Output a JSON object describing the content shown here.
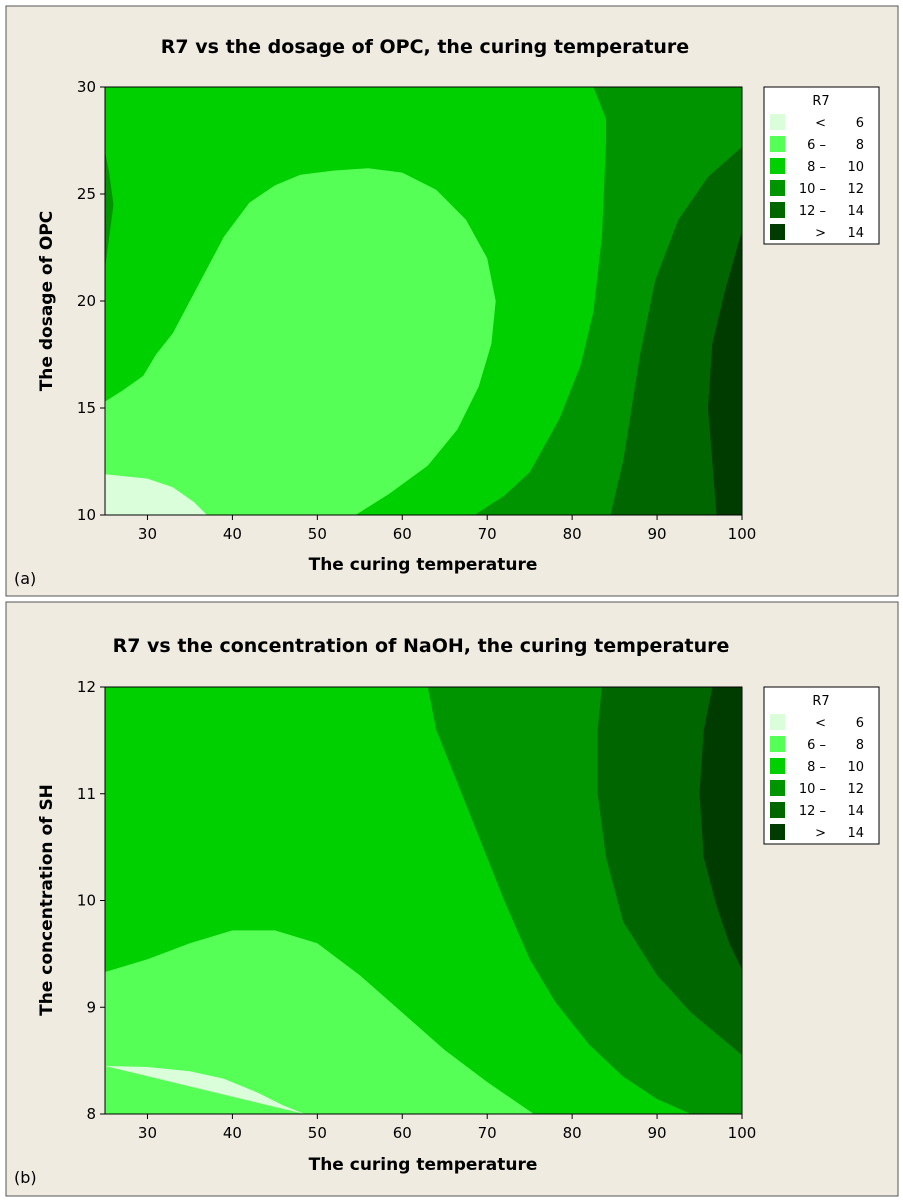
{
  "colors": {
    "panel_bg": "#f0ebe1",
    "levels": [
      "#d9fed9",
      "#55ff55",
      "#00d000",
      "#009500",
      "#006600",
      "#003c00"
    ]
  },
  "chart_data": [
    {
      "type": "contour",
      "panel_tag": "(a)",
      "title": "R7 vs the dosage of OPC, the curing temperature",
      "xlabel": "The curing temperature",
      "ylabel": "The dosage of OPC",
      "xlim": [
        25,
        100
      ],
      "ylim": [
        10,
        30
      ],
      "x_ticks": [
        "30",
        "40",
        "50",
        "60",
        "70",
        "80",
        "90",
        "100"
      ],
      "y_ticks": [
        "10",
        "15",
        "20",
        "25",
        "30"
      ],
      "legend": {
        "title": "R7",
        "placement": "right",
        "items": [
          {
            "left": "<",
            "right": "6"
          },
          {
            "left": "6 –",
            "right": "8"
          },
          {
            "left": "8 –",
            "right": "10"
          },
          {
            "left": "10 –",
            "right": "12"
          },
          {
            "left": "12 –",
            "right": "14"
          },
          {
            "left": ">",
            "right": "14"
          }
        ]
      },
      "regions": [
        {
          "level": 2,
          "points": [
            [
              25,
              10
            ],
            [
              100,
              10
            ],
            [
              100,
              30
            ],
            [
              25,
              30
            ]
          ]
        },
        {
          "level": 1,
          "points": [
            [
              25,
              15.3
            ],
            [
              27,
              15.8
            ],
            [
              29.5,
              16.5
            ],
            [
              31,
              17.5
            ],
            [
              33,
              18.5
            ],
            [
              35,
              20
            ],
            [
              37,
              21.5
            ],
            [
              39,
              23
            ],
            [
              42,
              24.6
            ],
            [
              45,
              25.4
            ],
            [
              48,
              25.9
            ],
            [
              52,
              26.1
            ],
            [
              56,
              26.2
            ],
            [
              60,
              26
            ],
            [
              64,
              25.2
            ],
            [
              67.5,
              23.8
            ],
            [
              70,
              22
            ],
            [
              71,
              20
            ],
            [
              70.5,
              18
            ],
            [
              69,
              16
            ],
            [
              66.5,
              14
            ],
            [
              63,
              12.3
            ],
            [
              58.5,
              11
            ],
            [
              54.5,
              10
            ],
            [
              25,
              10
            ]
          ]
        },
        {
          "level": 0,
          "points": [
            [
              25,
              10
            ],
            [
              25,
              11.9
            ],
            [
              30,
              11.7
            ],
            [
              33,
              11.3
            ],
            [
              35.5,
              10.6
            ],
            [
              37,
              10
            ]
          ]
        },
        {
          "level": 3,
          "points": [
            [
              100,
              30
            ],
            [
              82.5,
              30
            ],
            [
              84,
              28.5
            ],
            [
              84,
              27.5
            ],
            [
              83.5,
              23
            ],
            [
              82.5,
              19.5
            ],
            [
              81,
              17
            ],
            [
              78.5,
              14.5
            ],
            [
              75,
              12
            ],
            [
              72,
              10.9
            ],
            [
              68.5,
              10
            ],
            [
              100,
              10
            ]
          ]
        },
        {
          "level": 4,
          "points": [
            [
              100,
              27.2
            ],
            [
              96,
              25.8
            ],
            [
              92.5,
              23.8
            ],
            [
              89.8,
              21
            ],
            [
              88,
              17.5
            ],
            [
              87,
              15
            ],
            [
              86,
              12.5
            ],
            [
              84.5,
              10
            ],
            [
              100,
              10
            ]
          ]
        },
        {
          "level": 5,
          "points": [
            [
              100,
              23.3
            ],
            [
              98,
              20.5
            ],
            [
              96.5,
              18
            ],
            [
              96,
              15
            ],
            [
              96.5,
              12.5
            ],
            [
              97,
              10
            ],
            [
              100,
              10
            ]
          ]
        },
        {
          "level": 3,
          "points": [
            [
              25,
              21.5
            ],
            [
              25.5,
              23
            ],
            [
              26,
              24.5
            ],
            [
              25.5,
              26
            ],
            [
              25,
              27
            ]
          ]
        }
      ]
    },
    {
      "type": "contour",
      "panel_tag": "(b)",
      "title": "R7 vs the concentration of NaOH, the curing temperature",
      "xlabel": "The curing temperature",
      "ylabel": "The concentration of SH",
      "xlim": [
        25,
        100
      ],
      "ylim": [
        8,
        12
      ],
      "x_ticks": [
        "30",
        "40",
        "50",
        "60",
        "70",
        "80",
        "90",
        "100"
      ],
      "y_ticks": [
        "8",
        "9",
        "10",
        "11",
        "12"
      ],
      "legend": {
        "title": "R7",
        "placement": "right",
        "items": [
          {
            "left": "<",
            "right": "6"
          },
          {
            "left": "6 –",
            "right": "8"
          },
          {
            "left": "8 –",
            "right": "10"
          },
          {
            "left": "10 –",
            "right": "12"
          },
          {
            "left": "12 –",
            "right": "14"
          },
          {
            "left": ">",
            "right": "14"
          }
        ]
      },
      "regions": [
        {
          "level": 2,
          "points": [
            [
              25,
              8
            ],
            [
              100,
              8
            ],
            [
              100,
              12
            ],
            [
              25,
              12
            ]
          ]
        },
        {
          "level": 1,
          "points": [
            [
              25,
              9.33
            ],
            [
              30,
              9.45
            ],
            [
              35,
              9.6
            ],
            [
              40,
              9.72
            ],
            [
              45,
              9.72
            ],
            [
              50,
              9.6
            ],
            [
              55,
              9.3
            ],
            [
              60,
              8.95
            ],
            [
              65,
              8.6
            ],
            [
              70,
              8.3
            ],
            [
              75.5,
              8
            ],
            [
              25,
              8
            ]
          ]
        },
        {
          "level": 0,
          "points": [
            [
              25,
              8.45
            ],
            [
              30,
              8.44
            ],
            [
              35,
              8.4
            ],
            [
              39,
              8.33
            ],
            [
              43,
              8.2
            ],
            [
              46,
              8.08
            ],
            [
              48.5,
              8
            ]
          ]
        },
        {
          "level": 3,
          "points": [
            [
              63,
              12
            ],
            [
              64,
              11.6
            ],
            [
              66,
              11.2
            ],
            [
              69,
              10.6
            ],
            [
              72,
              10
            ],
            [
              75,
              9.45
            ],
            [
              78,
              9.05
            ],
            [
              82,
              8.65
            ],
            [
              86,
              8.35
            ],
            [
              90,
              8.14
            ],
            [
              94,
              8
            ],
            [
              100,
              8
            ],
            [
              100,
              12
            ]
          ]
        },
        {
          "level": 4,
          "points": [
            [
              83.5,
              12
            ],
            [
              83,
              11.6
            ],
            [
              83,
              11
            ],
            [
              84,
              10.4
            ],
            [
              86,
              9.8
            ],
            [
              90,
              9.3
            ],
            [
              94,
              8.95
            ],
            [
              97,
              8.75
            ],
            [
              100,
              8.55
            ],
            [
              100,
              12
            ]
          ]
        },
        {
          "level": 5,
          "points": [
            [
              96.5,
              12
            ],
            [
              95.5,
              11.6
            ],
            [
              95,
              11
            ],
            [
              95.5,
              10.4
            ],
            [
              97,
              9.95
            ],
            [
              98.5,
              9.6
            ],
            [
              100,
              9.35
            ],
            [
              100,
              12
            ]
          ]
        }
      ]
    }
  ]
}
